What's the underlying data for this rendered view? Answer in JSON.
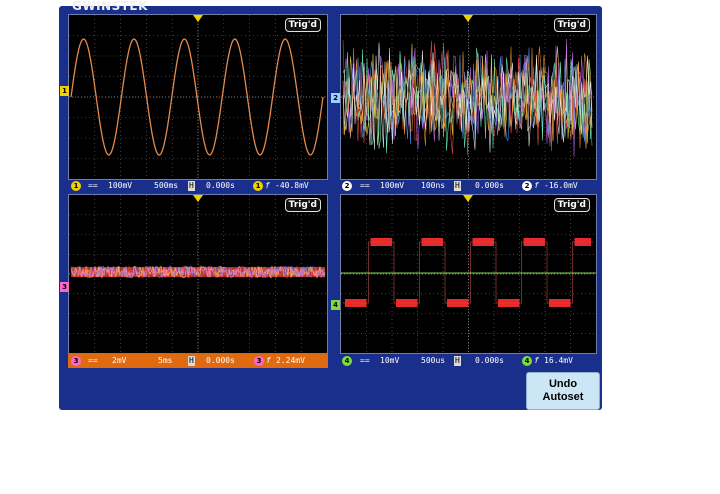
{
  "brand": "GWINSTEK",
  "undo": {
    "line1": "Undo",
    "line2": "Autoset"
  },
  "colors": {
    "ch1": "#f0d000",
    "ch2": "#9ad0ff",
    "ch3": "#ff66cc",
    "ch4": "#7ddc3a",
    "frame": "#1a2f8c"
  },
  "panels": [
    {
      "trig": "Trig'd",
      "ch": "1",
      "coupling": "==",
      "volts": "100mV",
      "time": "500ms",
      "mode": "H",
      "offset": "0.000s",
      "tch": "1",
      "tsym": "f",
      "tlevel": "-40.8mV",
      "marker": "1"
    },
    {
      "trig": "Trig'd",
      "ch": "2",
      "coupling": "==",
      "volts": "100mV",
      "time": "100ns",
      "mode": "H",
      "offset": "0.000s",
      "tch": "2",
      "tsym": "f",
      "tlevel": "-16.0mV",
      "marker": "2"
    },
    {
      "trig": "Trig'd",
      "ch": "3",
      "coupling": "==",
      "volts": "2mV",
      "time": "5ms",
      "mode": "H",
      "offset": "0.000s",
      "tch": "3",
      "tsym": "f",
      "tlevel": "2.24mV",
      "marker": "3"
    },
    {
      "trig": "Trig'd",
      "ch": "4",
      "coupling": "==",
      "volts": "10mV",
      "time": "500us",
      "mode": "H",
      "offset": "0.000s",
      "tch": "4",
      "tsym": "f",
      "tlevel": "16.4mV",
      "marker": "4"
    }
  ]
}
